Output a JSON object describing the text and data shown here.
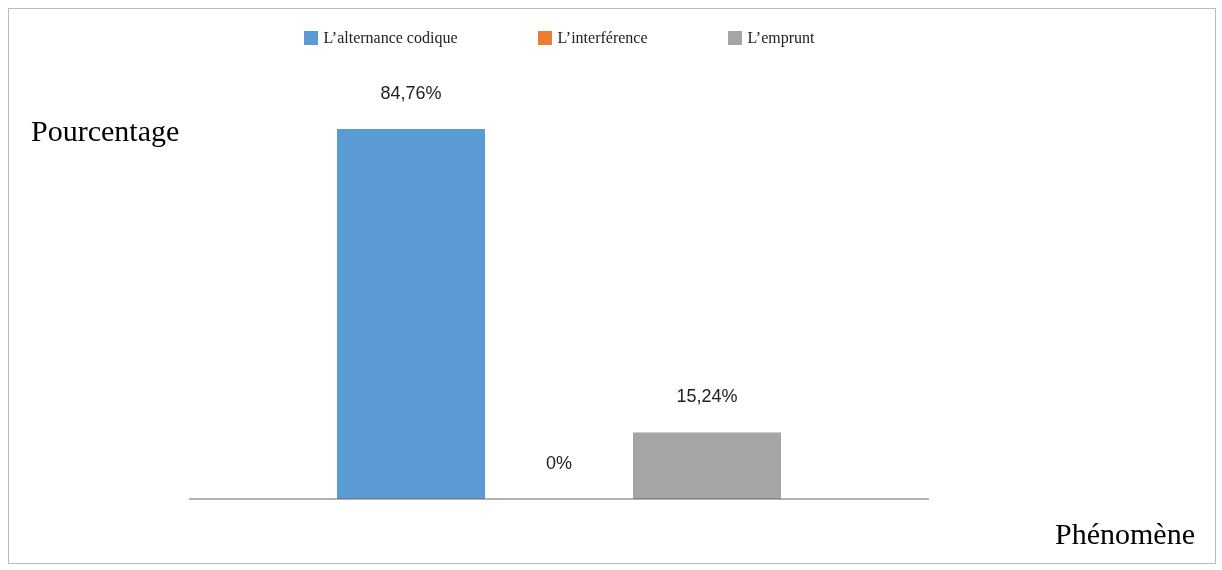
{
  "chart_data": {
    "type": "bar",
    "xlabel": "Phénomène",
    "ylabel": "Pourcentage",
    "categories": [
      null
    ],
    "legend": "top",
    "grid": false,
    "series": [
      {
        "name": "L’alternance codique",
        "color": "#5b9bd5",
        "values": [
          84.76
        ],
        "value_labels": [
          "84,76%"
        ]
      },
      {
        "name": "L’interférence",
        "color": "#ed7d31",
        "values": [
          0
        ],
        "value_labels": [
          "0%"
        ]
      },
      {
        "name": "L’emprunt",
        "color": "#a5a5a5",
        "values": [
          15.24
        ],
        "value_labels": [
          "15,24%"
        ]
      }
    ]
  }
}
